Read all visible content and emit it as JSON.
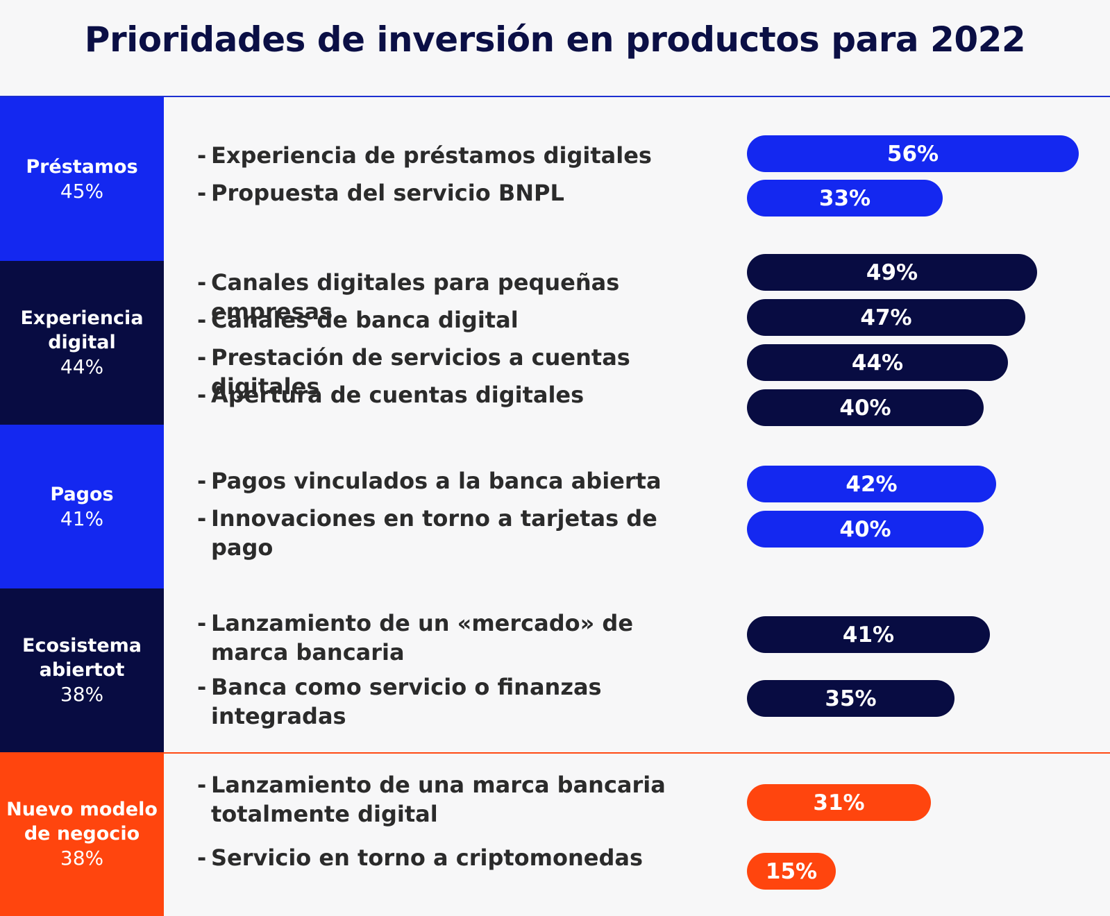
{
  "chart_data": {
    "type": "bar",
    "orientation": "horizontal",
    "title": "Prioridades de inversión en productos para 2022",
    "colors": {
      "blue": "#1428f0",
      "navy": "#080c42",
      "orange": "#ff450e"
    },
    "groups": [
      {
        "name": "Préstamos",
        "pct": "45%",
        "color": "blue",
        "items": [
          {
            "label": "Experiencia de préstamos digitales",
            "value": 56,
            "text": "56%"
          },
          {
            "label": "Propuesta del servicio BNPL",
            "value": 33,
            "text": "33%"
          }
        ]
      },
      {
        "name": "Experiencia digital",
        "pct": "44%",
        "color": "navy",
        "items": [
          {
            "label": "Canales digitales para pequeñas empresas",
            "value": 49,
            "text": "49%"
          },
          {
            "label": "Canales de banca digital",
            "value": 47,
            "text": "47%"
          },
          {
            "label": "Prestación de servicios a cuentas digitales",
            "value": 44,
            "text": "44%"
          },
          {
            "label": "Apertura de cuentas digitales",
            "value": 40,
            "text": "40%"
          }
        ]
      },
      {
        "name": "Pagos",
        "pct": "41%",
        "color": "blue",
        "items": [
          {
            "label": "Pagos vinculados a la banca abierta",
            "value": 42,
            "text": "42%"
          },
          {
            "label": "Innovaciones en torno a tarjetas de pago",
            "value": 40,
            "text": "40%"
          }
        ]
      },
      {
        "name": "Ecosistema abiertot",
        "pct": "38%",
        "color": "navy",
        "items": [
          {
            "label": "Lanzamiento de un «mercado» de marca bancaria",
            "value": 41,
            "text": "41%"
          },
          {
            "label": "Banca como servicio o finanzas integradas",
            "value": 35,
            "text": "35%"
          }
        ]
      },
      {
        "name": "Nuevo modelo de negocio",
        "pct": "38%",
        "color": "orange",
        "items": [
          {
            "label": "Lanzamiento de una marca bancaria totalmente digital",
            "value": 31,
            "text": "31%"
          },
          {
            "label": "Servicio en torno a criptomonedas",
            "value": 15,
            "text": "15%"
          }
        ]
      }
    ]
  }
}
